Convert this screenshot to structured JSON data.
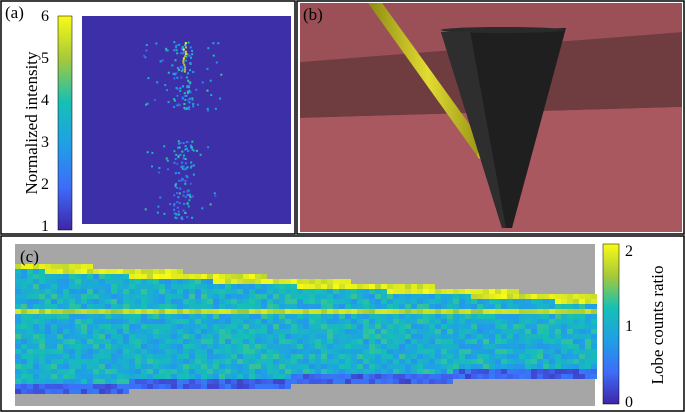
{
  "panels": {
    "a": {
      "label": "(a)",
      "colorbar_title": "Normalized intensity",
      "ticks": [
        "6",
        "5",
        "4",
        "3",
        "2",
        "1"
      ]
    },
    "b": {
      "label": "(b)"
    },
    "c": {
      "label": "(c)",
      "colorbar_title": "Lobe counts ratio",
      "ticks": [
        "2",
        "1",
        "0"
      ]
    }
  },
  "colors": {
    "heatmap_background": "#3d2fa8",
    "scene_wall": "#a7585f",
    "scene_band": "#6f3c40",
    "cone": "#1f1f1f",
    "rod": "#c8c21c",
    "masked_gray": "#a6a6a6"
  }
}
